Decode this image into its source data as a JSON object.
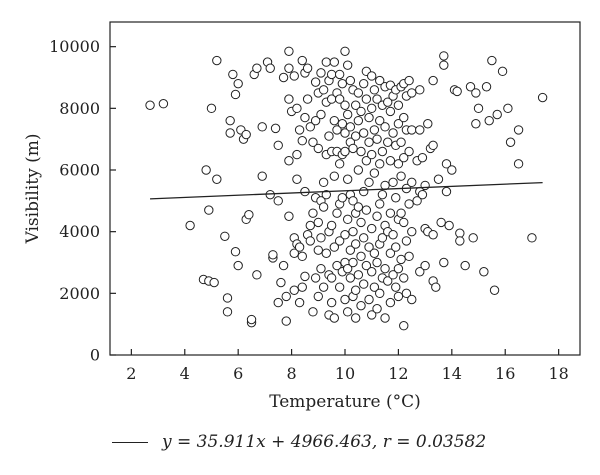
{
  "chart_data": {
    "type": "scatter",
    "title": "",
    "xlabel": "Temperature (°C)",
    "ylabel": "Visibility (m)",
    "xlim": [
      1.2,
      18.8
    ],
    "ylim": [
      0,
      10800
    ],
    "xticks": [
      2,
      4,
      6,
      8,
      10,
      12,
      14,
      16,
      18
    ],
    "yticks": [
      0,
      2000,
      4000,
      6000,
      8000,
      10000
    ],
    "grid": false,
    "marker": "open-circle",
    "colors": {
      "axis": "#222222",
      "marker_stroke": "#222222",
      "marker_fill": "#ffffff",
      "fit_line": "#222222"
    },
    "fit_line": {
      "slope": 35.911,
      "intercept": 4966.463,
      "x_range": [
        2.7,
        17.4
      ]
    },
    "legend_text": "y = 35.911x + 4966.463, r = 0.03582",
    "points": [
      [
        2.7,
        8100
      ],
      [
        3.2,
        8150
      ],
      [
        4.2,
        4200
      ],
      [
        4.7,
        2450
      ],
      [
        4.8,
        6000
      ],
      [
        4.9,
        4700
      ],
      [
        4.9,
        2400
      ],
      [
        5.1,
        2350
      ],
      [
        5.0,
        8000
      ],
      [
        5.2,
        9550
      ],
      [
        5.2,
        5700
      ],
      [
        5.5,
        3850
      ],
      [
        5.6,
        1850
      ],
      [
        5.6,
        1400
      ],
      [
        5.7,
        7600
      ],
      [
        5.7,
        7200
      ],
      [
        5.8,
        9100
      ],
      [
        5.9,
        8450
      ],
      [
        5.9,
        3350
      ],
      [
        6.0,
        8800
      ],
      [
        6.0,
        2900
      ],
      [
        6.1,
        7300
      ],
      [
        6.2,
        7000
      ],
      [
        6.3,
        7150
      ],
      [
        6.3,
        4400
      ],
      [
        6.4,
        4550
      ],
      [
        6.5,
        1050
      ],
      [
        6.5,
        1150
      ],
      [
        6.6,
        9100
      ],
      [
        6.7,
        9300
      ],
      [
        6.7,
        2600
      ],
      [
        6.9,
        5800
      ],
      [
        6.9,
        7400
      ],
      [
        7.1,
        9500
      ],
      [
        7.2,
        9300
      ],
      [
        7.2,
        5200
      ],
      [
        7.3,
        3150
      ],
      [
        7.3,
        3250
      ],
      [
        7.4,
        7350
      ],
      [
        7.5,
        6800
      ],
      [
        7.5,
        5000
      ],
      [
        7.5,
        1700
      ],
      [
        7.6,
        2350
      ],
      [
        7.7,
        9000
      ],
      [
        7.7,
        2900
      ],
      [
        7.8,
        1900
      ],
      [
        7.8,
        1100
      ],
      [
        7.9,
        9850
      ],
      [
        7.9,
        9300
      ],
      [
        7.9,
        8300
      ],
      [
        7.9,
        6300
      ],
      [
        7.9,
        4500
      ],
      [
        8.0,
        7900
      ],
      [
        8.1,
        9050
      ],
      [
        8.1,
        3800
      ],
      [
        8.1,
        3300
      ],
      [
        8.1,
        2100
      ],
      [
        8.2,
        8000
      ],
      [
        8.2,
        6500
      ],
      [
        8.2,
        5700
      ],
      [
        8.2,
        3600
      ],
      [
        8.3,
        7300
      ],
      [
        8.3,
        3500
      ],
      [
        8.3,
        1700
      ],
      [
        8.4,
        9550
      ],
      [
        8.4,
        6950
      ],
      [
        8.4,
        3200
      ],
      [
        8.4,
        2200
      ],
      [
        8.5,
        9150
      ],
      [
        8.5,
        7700
      ],
      [
        8.5,
        5300
      ],
      [
        8.5,
        2550
      ],
      [
        8.6,
        9300
      ],
      [
        8.6,
        8300
      ],
      [
        8.6,
        3900
      ],
      [
        8.7,
        7400
      ],
      [
        8.7,
        4200
      ],
      [
        8.7,
        3700
      ],
      [
        8.8,
        6900
      ],
      [
        8.8,
        4600
      ],
      [
        8.8,
        1400
      ],
      [
        8.9,
        8850
      ],
      [
        8.9,
        7600
      ],
      [
        8.9,
        5100
      ],
      [
        8.9,
        2500
      ],
      [
        9.0,
        8500
      ],
      [
        9.0,
        6700
      ],
      [
        9.0,
        4300
      ],
      [
        9.0,
        3400
      ],
      [
        9.0,
        1900
      ],
      [
        9.1,
        9150
      ],
      [
        9.1,
        7800
      ],
      [
        9.1,
        5000
      ],
      [
        9.1,
        3800
      ],
      [
        9.1,
        2800
      ],
      [
        9.2,
        8600
      ],
      [
        9.2,
        5600
      ],
      [
        9.2,
        4800
      ],
      [
        9.2,
        2200
      ],
      [
        9.3,
        9500
      ],
      [
        9.3,
        8200
      ],
      [
        9.3,
        6500
      ],
      [
        9.3,
        5200
      ],
      [
        9.3,
        3300
      ],
      [
        9.4,
        8900
      ],
      [
        9.4,
        7100
      ],
      [
        9.4,
        4000
      ],
      [
        9.4,
        2600
      ],
      [
        9.4,
        1300
      ],
      [
        9.5,
        9100
      ],
      [
        9.5,
        8300
      ],
      [
        9.5,
        6600
      ],
      [
        9.5,
        4200
      ],
      [
        9.5,
        2500
      ],
      [
        9.5,
        1700
      ],
      [
        9.6,
        9500
      ],
      [
        9.6,
        7600
      ],
      [
        9.6,
        5800
      ],
      [
        9.6,
        3500
      ],
      [
        9.6,
        1200
      ],
      [
        9.7,
        8500
      ],
      [
        9.7,
        7300
      ],
      [
        9.7,
        6600
      ],
      [
        9.7,
        4600
      ],
      [
        9.7,
        2900
      ],
      [
        9.8,
        9100
      ],
      [
        9.8,
        8300
      ],
      [
        9.8,
        6200
      ],
      [
        9.8,
        4900
      ],
      [
        9.8,
        3700
      ],
      [
        9.8,
        2200
      ],
      [
        9.9,
        8800
      ],
      [
        9.9,
        7500
      ],
      [
        9.9,
        6500
      ],
      [
        9.9,
        5100
      ],
      [
        9.9,
        2700
      ],
      [
        10.0,
        9850
      ],
      [
        10.0,
        8100
      ],
      [
        10.0,
        7200
      ],
      [
        10.0,
        6600
      ],
      [
        10.0,
        3900
      ],
      [
        10.0,
        3000
      ],
      [
        10.0,
        1800
      ],
      [
        10.1,
        9400
      ],
      [
        10.1,
        7800
      ],
      [
        10.1,
        5700
      ],
      [
        10.1,
        4400
      ],
      [
        10.1,
        2800
      ],
      [
        10.1,
        1400
      ],
      [
        10.2,
        8900
      ],
      [
        10.2,
        7400
      ],
      [
        10.2,
        6900
      ],
      [
        10.2,
        5200
      ],
      [
        10.2,
        3400
      ],
      [
        10.2,
        2500
      ],
      [
        10.3,
        8600
      ],
      [
        10.3,
        6700
      ],
      [
        10.3,
        5000
      ],
      [
        10.3,
        4000
      ],
      [
        10.3,
        3000
      ],
      [
        10.3,
        1900
      ],
      [
        10.4,
        8100
      ],
      [
        10.4,
        7100
      ],
      [
        10.4,
        4600
      ],
      [
        10.4,
        3600
      ],
      [
        10.4,
        2100
      ],
      [
        10.4,
        1200
      ],
      [
        10.5,
        8500
      ],
      [
        10.5,
        7600
      ],
      [
        10.5,
        6000
      ],
      [
        10.5,
        4800
      ],
      [
        10.5,
        2600
      ],
      [
        10.6,
        7900
      ],
      [
        10.6,
        6600
      ],
      [
        10.6,
        4300
      ],
      [
        10.6,
        3200
      ],
      [
        10.6,
        1600
      ],
      [
        10.7,
        8800
      ],
      [
        10.7,
        7200
      ],
      [
        10.7,
        5300
      ],
      [
        10.7,
        3800
      ],
      [
        10.7,
        2300
      ],
      [
        10.8,
        9200
      ],
      [
        10.8,
        8300
      ],
      [
        10.8,
        6300
      ],
      [
        10.8,
        4700
      ],
      [
        10.8,
        2900
      ],
      [
        10.9,
        7700
      ],
      [
        10.9,
        6900
      ],
      [
        10.9,
        5600
      ],
      [
        10.9,
        3500
      ],
      [
        10.9,
        1800
      ],
      [
        11.0,
        9050
      ],
      [
        11.0,
        8000
      ],
      [
        11.0,
        6500
      ],
      [
        11.0,
        4100
      ],
      [
        11.0,
        2700
      ],
      [
        11.0,
        1300
      ],
      [
        11.1,
        8600
      ],
      [
        11.1,
        7300
      ],
      [
        11.1,
        5900
      ],
      [
        11.1,
        3300
      ],
      [
        11.1,
        2200
      ],
      [
        11.2,
        8300
      ],
      [
        11.2,
        7000
      ],
      [
        11.2,
        4500
      ],
      [
        11.2,
        3000
      ],
      [
        11.2,
        1500
      ],
      [
        11.3,
        8900
      ],
      [
        11.3,
        7600
      ],
      [
        11.3,
        6200
      ],
      [
        11.3,
        4900
      ],
      [
        11.3,
        3600
      ],
      [
        11.3,
        2000
      ],
      [
        11.4,
        8100
      ],
      [
        11.4,
        6600
      ],
      [
        11.4,
        5200
      ],
      [
        11.4,
        3800
      ],
      [
        11.4,
        2500
      ],
      [
        11.5,
        8700
      ],
      [
        11.5,
        7400
      ],
      [
        11.5,
        5500
      ],
      [
        11.5,
        4200
      ],
      [
        11.5,
        2800
      ],
      [
        11.5,
        1200
      ],
      [
        11.6,
        8200
      ],
      [
        11.6,
        6900
      ],
      [
        11.6,
        4000
      ],
      [
        11.6,
        2400
      ],
      [
        11.7,
        8750
      ],
      [
        11.7,
        7900
      ],
      [
        11.7,
        6300
      ],
      [
        11.7,
        4600
      ],
      [
        11.7,
        3300
      ],
      [
        11.7,
        1700
      ],
      [
        11.8,
        8400
      ],
      [
        11.8,
        7200
      ],
      [
        11.8,
        5600
      ],
      [
        11.8,
        3900
      ],
      [
        11.8,
        2600
      ],
      [
        11.9,
        8600
      ],
      [
        11.9,
        6800
      ],
      [
        11.9,
        5100
      ],
      [
        11.9,
        3500
      ],
      [
        11.9,
        2200
      ],
      [
        12.0,
        8100
      ],
      [
        12.0,
        7500
      ],
      [
        12.0,
        6200
      ],
      [
        12.0,
        4400
      ],
      [
        12.0,
        2800
      ],
      [
        12.0,
        1900
      ],
      [
        12.1,
        8700
      ],
      [
        12.1,
        6900
      ],
      [
        12.1,
        5800
      ],
      [
        12.1,
        4600
      ],
      [
        12.1,
        3100
      ],
      [
        12.2,
        8800
      ],
      [
        12.2,
        7700
      ],
      [
        12.2,
        6400
      ],
      [
        12.2,
        4300
      ],
      [
        12.2,
        2500
      ],
      [
        12.2,
        950
      ],
      [
        12.3,
        8400
      ],
      [
        12.3,
        7300
      ],
      [
        12.3,
        5400
      ],
      [
        12.3,
        3700
      ],
      [
        12.3,
        2000
      ],
      [
        12.4,
        8900
      ],
      [
        12.4,
        6600
      ],
      [
        12.4,
        4900
      ],
      [
        12.4,
        3200
      ],
      [
        12.5,
        8500
      ],
      [
        12.5,
        7300
      ],
      [
        12.5,
        5600
      ],
      [
        12.5,
        4000
      ],
      [
        12.5,
        1800
      ],
      [
        12.7,
        6300
      ],
      [
        12.7,
        5000
      ],
      [
        12.8,
        8600
      ],
      [
        12.8,
        7300
      ],
      [
        12.8,
        5300
      ],
      [
        12.8,
        2700
      ],
      [
        12.9,
        6400
      ],
      [
        12.9,
        5200
      ],
      [
        13.0,
        5500
      ],
      [
        13.0,
        4100
      ],
      [
        13.0,
        2900
      ],
      [
        13.1,
        7500
      ],
      [
        13.1,
        4000
      ],
      [
        13.2,
        6700
      ],
      [
        13.3,
        6800
      ],
      [
        13.3,
        8900
      ],
      [
        13.3,
        3900
      ],
      [
        13.3,
        2400
      ],
      [
        13.4,
        2200
      ],
      [
        13.5,
        5700
      ],
      [
        13.6,
        4300
      ],
      [
        13.7,
        9700
      ],
      [
        13.7,
        9400
      ],
      [
        13.7,
        3000
      ],
      [
        13.8,
        6200
      ],
      [
        13.8,
        5300
      ],
      [
        13.9,
        4200
      ],
      [
        14.0,
        6000
      ],
      [
        14.1,
        8600
      ],
      [
        14.2,
        8550
      ],
      [
        14.3,
        3950
      ],
      [
        14.3,
        3700
      ],
      [
        14.5,
        2900
      ],
      [
        14.7,
        8700
      ],
      [
        14.8,
        3800
      ],
      [
        14.9,
        7500
      ],
      [
        14.9,
        8500
      ],
      [
        15.0,
        8000
      ],
      [
        15.2,
        2700
      ],
      [
        15.3,
        8700
      ],
      [
        15.4,
        7600
      ],
      [
        15.5,
        9550
      ],
      [
        15.6,
        2100
      ],
      [
        15.7,
        7800
      ],
      [
        15.9,
        9200
      ],
      [
        16.1,
        8000
      ],
      [
        16.2,
        6900
      ],
      [
        16.5,
        7300
      ],
      [
        16.5,
        6200
      ],
      [
        17.0,
        3800
      ],
      [
        17.4,
        8350
      ]
    ]
  }
}
